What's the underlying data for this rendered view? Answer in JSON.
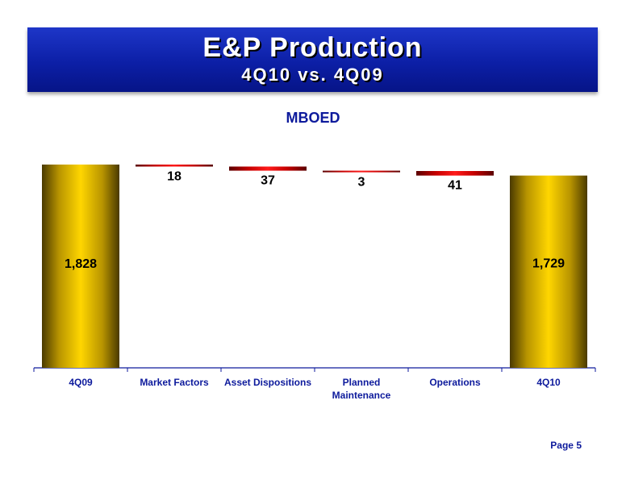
{
  "header": {
    "title": "E&P Production",
    "subtitle": "4Q10 vs. 4Q09"
  },
  "footer": {
    "page_label": "Page 5"
  },
  "colors": {
    "banner": "#0c1fa6",
    "total_bar": "#e6c000",
    "decrease_bar": "#c40000",
    "axis_text": "#0d1a9c"
  },
  "chart_data": {
    "type": "bar",
    "subtype": "waterfall",
    "title": "MBOED",
    "categories": [
      "4Q09",
      "Market Factors",
      "Asset Dispositions",
      "Planned Maintenance",
      "Operations",
      "4Q10"
    ],
    "category_labels": [
      [
        "4Q09"
      ],
      [
        "Market Factors"
      ],
      [
        "Asset Dispositions"
      ],
      [
        "Planned",
        "Maintenance"
      ],
      [
        "Operations"
      ],
      [
        "4Q10"
      ]
    ],
    "values": [
      1828,
      -18,
      -37,
      -3,
      -41,
      1729
    ],
    "kinds": [
      "total",
      "decrease",
      "decrease",
      "decrease",
      "decrease",
      "total"
    ],
    "data_labels": [
      "1,828",
      "18",
      "37",
      "3",
      "41",
      "1,729"
    ],
    "ylim": [
      0,
      1850
    ],
    "xlabel": "",
    "ylabel": ""
  }
}
